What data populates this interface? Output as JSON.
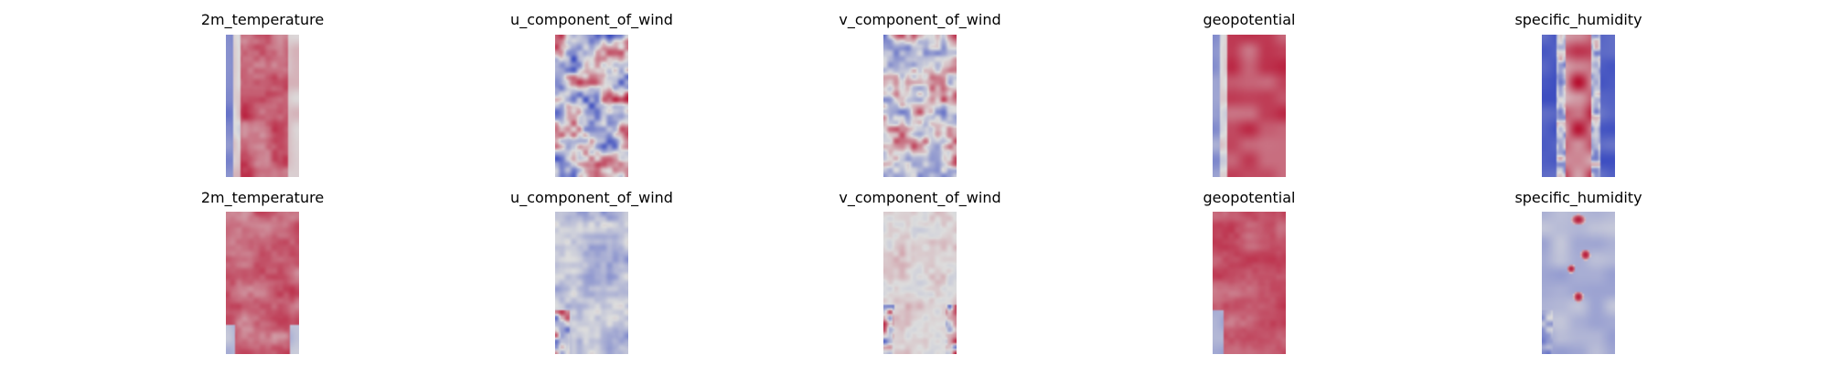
{
  "chart_data": {
    "type": "heatmap",
    "colormap": "coolwarm",
    "colors": {
      "low": "#3b4cc0",
      "mid": "#dddddd",
      "high": "#b40426"
    },
    "rows": [
      {
        "panels": [
          {
            "title": "2m_temperature",
            "pattern": "temp_top"
          },
          {
            "title": "u_component_of_wind",
            "pattern": "u_top"
          },
          {
            "title": "v_component_of_wind",
            "pattern": "v_top"
          },
          {
            "title": "geopotential",
            "pattern": "geo_top"
          },
          {
            "title": "specific_humidity",
            "pattern": "hum_top"
          }
        ]
      },
      {
        "panels": [
          {
            "title": "2m_temperature",
            "pattern": "temp_bot"
          },
          {
            "title": "u_component_of_wind",
            "pattern": "u_bot"
          },
          {
            "title": "v_component_of_wind",
            "pattern": "v_bot"
          },
          {
            "title": "geopotential",
            "pattern": "geo_bot"
          },
          {
            "title": "specific_humidity",
            "pattern": "hum_bot"
          }
        ]
      }
    ]
  }
}
